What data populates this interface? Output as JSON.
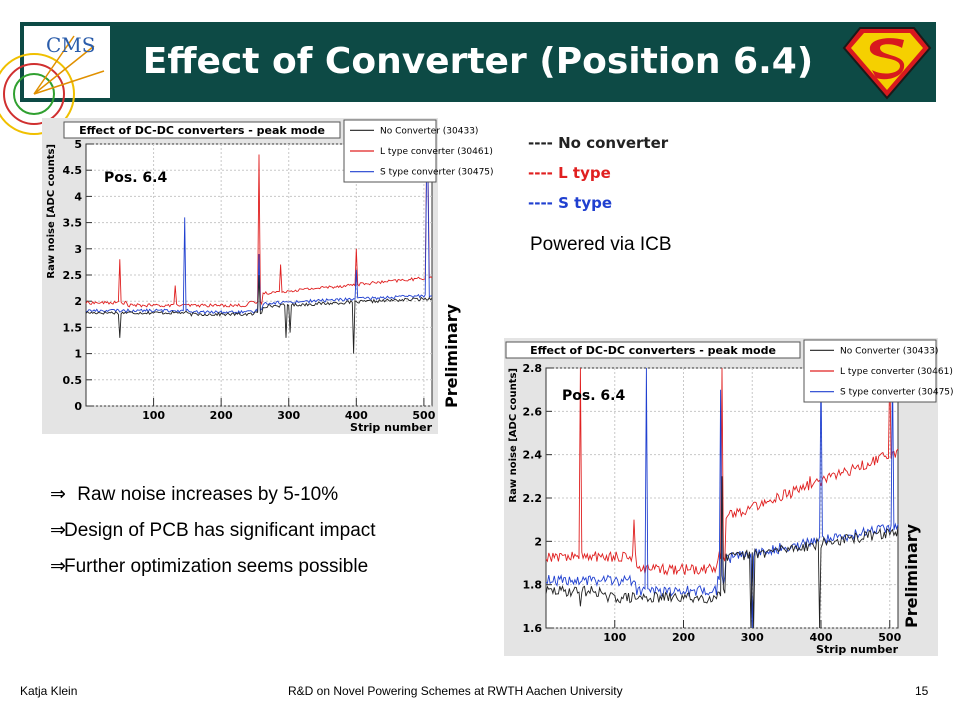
{
  "slide": {
    "title": "Effect of Converter (Position 6.4)",
    "cms_logo_text": "CMS",
    "legend": [
      {
        "label": "---- No converter",
        "color": "#222222"
      },
      {
        "label": "---- L type",
        "color": "#e02020"
      },
      {
        "label": "---- S type",
        "color": "#2040d0"
      }
    ],
    "powered": "Powered via ICB",
    "bullets": [
      {
        "arrow": "⇒",
        "text": " Raw noise increases by 5-10%"
      },
      {
        "arrow": "⇒",
        "text": "Design of PCB has significant impact"
      },
      {
        "arrow": "⇒",
        "text": "Further optimization seems possible"
      }
    ],
    "preliminary": "Preliminary",
    "footer": {
      "author": "Katja Klein",
      "talk": "R&D on Novel Powering Schemes at RWTH Aachen University",
      "page": "15"
    }
  },
  "chart_data": [
    {
      "type": "line",
      "title": "Effect of DC-DC converters - peak mode",
      "annotation": "Pos. 6.4",
      "xlabel": "Strip number",
      "ylabel": "Raw noise [ADC counts]",
      "xlim": [
        0,
        512
      ],
      "ylim": [
        0,
        5
      ],
      "xticks": [
        100,
        200,
        300,
        400,
        500
      ],
      "yticks": [
        0,
        0.5,
        1,
        1.5,
        2,
        2.5,
        3,
        3.5,
        4,
        4.5,
        5
      ],
      "legend_position": "top-right",
      "series": [
        {
          "name": "No Converter (30433)",
          "color": "#222222"
        },
        {
          "name": "L type converter (30461)",
          "color": "#e02020"
        },
        {
          "name": "S type converter (30475)",
          "color": "#2040d0"
        }
      ]
    },
    {
      "type": "line",
      "title": "Effect of DC-DC converters - peak mode",
      "annotation": "Pos. 6.4",
      "xlabel": "Strip number",
      "ylabel": "Raw noise [ADC counts]",
      "xlim": [
        0,
        512
      ],
      "ylim": [
        1.6,
        2.8
      ],
      "xticks": [
        100,
        200,
        300,
        400,
        500
      ],
      "yticks": [
        1.6,
        1.8,
        2,
        2.2,
        2.4,
        2.6,
        2.8
      ],
      "legend_position": "top-right",
      "series": [
        {
          "name": "No Converter (30433)",
          "color": "#222222"
        },
        {
          "name": "L type converter (30461)",
          "color": "#e02020"
        },
        {
          "name": "S type converter (30475)",
          "color": "#2040d0"
        }
      ]
    }
  ]
}
